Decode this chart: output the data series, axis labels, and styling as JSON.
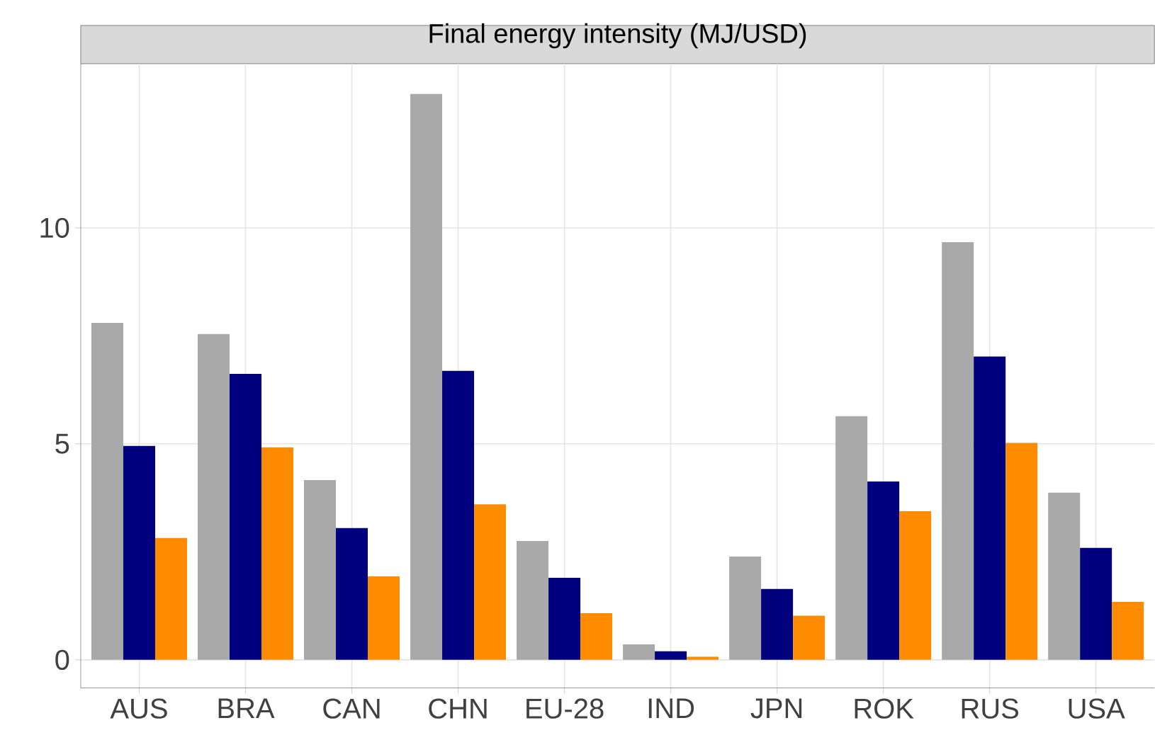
{
  "chart_data": {
    "type": "bar",
    "title": "Final energy intensity (MJ/USD)",
    "categories": [
      "AUS",
      "BRA",
      "CAN",
      "CHN",
      "EU-28",
      "IND",
      "JPN",
      "ROK",
      "RUS",
      "USA"
    ],
    "series": [
      {
        "color": "#a9a9a9",
        "values": [
          7.8,
          7.54,
          4.16,
          13.1,
          2.75,
          0.36,
          2.39,
          5.64,
          9.67,
          3.87
        ]
      },
      {
        "color": "#00007f",
        "values": [
          4.95,
          6.62,
          3.05,
          6.69,
          1.9,
          0.2,
          1.64,
          4.13,
          7.02,
          2.59
        ]
      },
      {
        "color": "#ff8c00",
        "values": [
          2.82,
          4.92,
          1.93,
          3.6,
          1.08,
          0.07,
          1.02,
          3.44,
          5.02,
          1.34
        ]
      }
    ],
    "ylim": [
      -0.65,
      13.8
    ],
    "yticks": [
      0,
      5,
      10
    ],
    "grid": true
  }
}
